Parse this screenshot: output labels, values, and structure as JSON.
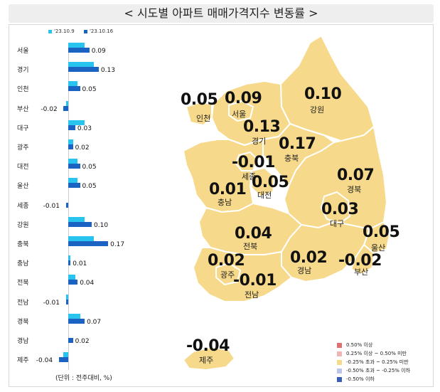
{
  "title": "< 시도별 아파트 매매가격지수 변동률 >",
  "legend": {
    "series_a": "'23.10.9",
    "series_b": "'23.10.16",
    "color_a": "#29c3f0",
    "color_b": "#1a63c2"
  },
  "unit_note": "(단위 : 전주대비, %)",
  "chart_data": {
    "type": "bar",
    "orientation": "horizontal",
    "categories": [
      "서울",
      "경기",
      "인천",
      "부산",
      "대구",
      "광주",
      "대전",
      "울산",
      "세종",
      "강원",
      "충북",
      "충남",
      "전북",
      "전남",
      "경북",
      "경남",
      "제주"
    ],
    "series": [
      {
        "name": "'23.10.9",
        "values": [
          0.07,
          0.11,
          0.04,
          -0.01,
          0.07,
          0.02,
          0.04,
          0.04,
          0.0,
          0.07,
          0.11,
          0.01,
          0.03,
          -0.01,
          0.05,
          0.0,
          -0.02
        ]
      },
      {
        "name": "'23.10.16",
        "values": [
          0.09,
          0.13,
          0.05,
          -0.02,
          0.03,
          0.02,
          0.05,
          0.05,
          -0.01,
          0.1,
          0.17,
          0.01,
          0.04,
          -0.01,
          0.07,
          0.02,
          -0.04
        ]
      }
    ],
    "value_labels": [
      "0.09",
      "0.13",
      "0.05",
      "-0.02",
      "0.03",
      "0.02",
      "0.05",
      "0.05",
      "-0.01",
      "0.10",
      "0.17",
      "0.01",
      "0.04",
      "-0.01",
      "0.07",
      "0.02",
      "-0.04"
    ]
  },
  "map": {
    "fill_color": "#f6d98a",
    "border_color": "#ffffff",
    "regions": [
      {
        "name": "인천",
        "value": "0.05"
      },
      {
        "name": "서울",
        "value": "0.09"
      },
      {
        "name": "강원",
        "value": "0.10"
      },
      {
        "name": "경기",
        "value": "0.13"
      },
      {
        "name": "충북",
        "value": "0.17"
      },
      {
        "name": "세종",
        "value": "-0.01"
      },
      {
        "name": "대전",
        "value": "0.05"
      },
      {
        "name": "충남",
        "value": "0.01"
      },
      {
        "name": "경북",
        "value": "0.07"
      },
      {
        "name": "대구",
        "value": "0.03"
      },
      {
        "name": "전북",
        "value": "0.04"
      },
      {
        "name": "울산",
        "value": "0.05"
      },
      {
        "name": "광주",
        "value": "0.02"
      },
      {
        "name": "경남",
        "value": "0.02"
      },
      {
        "name": "부산",
        "value": "-0.02"
      },
      {
        "name": "전남",
        "value": "-0.01"
      },
      {
        "name": "제주",
        "value": "-0.04"
      }
    ]
  },
  "color_legend": [
    {
      "label": "0.50% 이상",
      "color": "#e07070"
    },
    {
      "label": "0.25% 이상 ~ 0.50% 미만",
      "color": "#f2b3b3"
    },
    {
      "label": "-0.25% 초과 ~ 0.25% 미만",
      "color": "#f6d98a"
    },
    {
      "label": "-0.50% 초과 ~ -0.25% 이하",
      "color": "#b9c6ea"
    },
    {
      "label": "-0.50% 이하",
      "color": "#3a5fb8"
    }
  ]
}
